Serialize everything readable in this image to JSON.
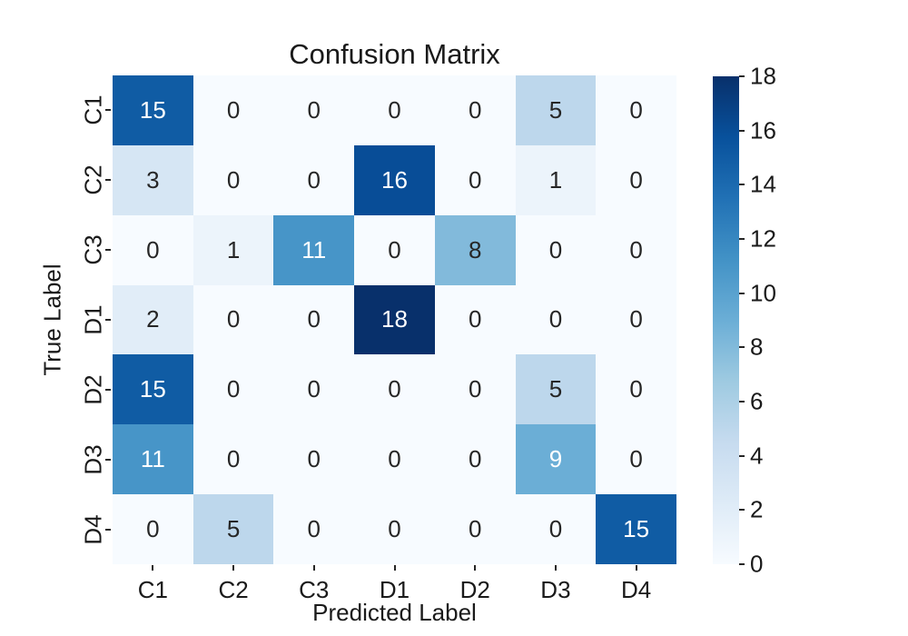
{
  "chart_data": {
    "type": "heatmap",
    "title": "Confusion Matrix",
    "xlabel": "Predicted Label",
    "ylabel": "True Label",
    "x_categories": [
      "C1",
      "C2",
      "C3",
      "D1",
      "D2",
      "D3",
      "D4"
    ],
    "y_categories": [
      "C1",
      "C2",
      "C3",
      "D1",
      "D2",
      "D3",
      "D4"
    ],
    "matrix": [
      [
        15,
        0,
        0,
        0,
        0,
        5,
        0
      ],
      [
        3,
        0,
        0,
        16,
        0,
        1,
        0
      ],
      [
        0,
        1,
        11,
        0,
        8,
        0,
        0
      ],
      [
        2,
        0,
        0,
        18,
        0,
        0,
        0
      ],
      [
        15,
        0,
        0,
        0,
        0,
        5,
        0
      ],
      [
        11,
        0,
        0,
        0,
        0,
        9,
        0
      ],
      [
        0,
        5,
        0,
        0,
        0,
        0,
        15
      ]
    ],
    "annotations": true,
    "vmin": 0,
    "vmax": 18,
    "colormap": "Blues",
    "colorbar_ticks": [
      0,
      2,
      4,
      6,
      8,
      10,
      12,
      14,
      16,
      18
    ],
    "colorbar_position": "right",
    "grid": false,
    "legend": false
  },
  "colors": {
    "background": "#ffffff",
    "blues_anchors": [
      "#f7fbff",
      "#deebf7",
      "#c6dbef",
      "#9ecae1",
      "#6baed6",
      "#4292c6",
      "#2171b5",
      "#08519c",
      "#08306b"
    ],
    "annotation_dark": "#262626",
    "annotation_light": "#ffffff",
    "tick_text": "#1a1a1a"
  }
}
